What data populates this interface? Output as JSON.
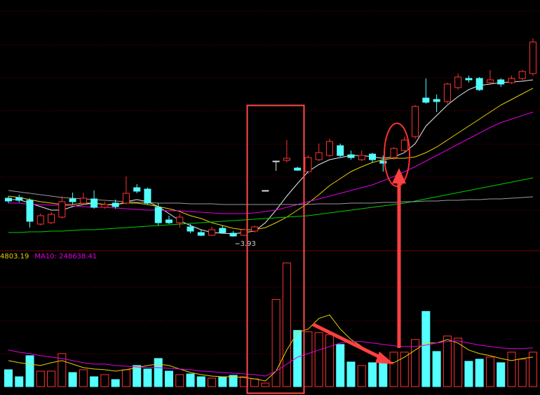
{
  "chart_data": [
    {
      "type": "candlestick",
      "ylim": [
        3.71,
        7.31
      ],
      "up_color": "#ff3232",
      "down_color": "#54ffff",
      "flat_color": "#dddddd",
      "open": [
        4.48,
        4.49,
        4.45,
        4.11,
        4.13,
        4.21,
        4.47,
        4.41,
        4.47,
        4.35,
        4.41,
        4.41,
        4.63,
        4.61,
        4.35,
        4.17,
        4.13,
        4.07,
        3.99,
        3.95,
        4.05,
        3.98,
        3.95,
        4.01,
        4.59,
        5.01,
        5.02,
        4.91,
        4.86,
        5.03,
        5.09,
        5.23,
        5.1,
        5.03,
        5.11,
        5.01,
        5.06,
        5.16,
        5.36,
        5.91,
        5.89,
        5.86,
        6.06,
        6.19,
        6.19,
        6.13,
        6.17,
        6.13,
        6.19,
        6.26
      ],
      "close": [
        4.44,
        4.45,
        4.15,
        4.23,
        4.25,
        4.43,
        4.43,
        4.48,
        4.35,
        4.39,
        4.36,
        4.55,
        4.58,
        4.41,
        4.13,
        4.13,
        4.21,
        4.01,
        3.95,
        4.03,
        3.99,
        3.94,
        4.03,
        4.07,
        4.59,
        5.01,
        5.05,
        4.88,
        5.06,
        5.13,
        5.29,
        5.09,
        5.06,
        5.09,
        5.03,
        4.98,
        5.19,
        5.31,
        5.79,
        5.85,
        5.86,
        6.11,
        6.21,
        6.17,
        6.03,
        6.17,
        6.11,
        6.19,
        6.29,
        6.71
      ],
      "high": [
        4.51,
        4.53,
        4.48,
        4.26,
        4.28,
        4.51,
        4.56,
        4.56,
        4.59,
        4.43,
        4.46,
        4.79,
        4.68,
        4.63,
        4.41,
        4.23,
        4.26,
        4.11,
        4.03,
        4.07,
        4.09,
        4.01,
        4.05,
        4.09,
        4.59,
        5.01,
        5.31,
        4.93,
        5.09,
        5.26,
        5.33,
        5.26,
        5.16,
        5.16,
        5.13,
        5.09,
        5.21,
        5.36,
        5.81,
        6.19,
        5.96,
        6.13,
        6.26,
        6.23,
        6.21,
        6.31,
        6.19,
        6.23,
        6.31,
        6.76
      ],
      "low": [
        4.41,
        4.42,
        4.06,
        4.09,
        4.11,
        4.19,
        4.39,
        4.38,
        4.33,
        4.33,
        4.33,
        4.39,
        4.55,
        4.39,
        4.09,
        4.11,
        4.06,
        3.98,
        3.94,
        3.94,
        3.97,
        3.93,
        3.94,
        3.99,
        4.59,
        4.87,
        4.99,
        4.87,
        4.83,
        5.01,
        5.07,
        5.07,
        5.03,
        5.01,
        4.99,
        4.86,
        5.03,
        5.13,
        5.33,
        5.83,
        5.71,
        5.83,
        6.03,
        6.13,
        6.01,
        6.11,
        6.07,
        6.11,
        6.16,
        6.23
      ],
      "low_label_index": 21,
      "series": [
        {
          "color": "#e8e8e8",
          "values": [
            4.46,
            4.46,
            4.41,
            4.36,
            4.31,
            4.31,
            4.36,
            4.39,
            4.41,
            4.39,
            4.38,
            4.43,
            4.46,
            4.43,
            4.36,
            4.26,
            4.16,
            4.09,
            4.03,
            3.99,
            3.98,
            3.97,
            3.99,
            4.01,
            4.13,
            4.31,
            4.51,
            4.69,
            4.86,
            4.96,
            5.03,
            5.06,
            5.09,
            5.09,
            5.07,
            5.05,
            5.07,
            5.13,
            5.26,
            5.51,
            5.66,
            5.81,
            5.93,
            6.03,
            6.09,
            6.11,
            6.13,
            6.14,
            6.15,
            6.17
          ]
        },
        {
          "color": "#e8d000",
          "values": [
            4.51,
            4.49,
            4.46,
            4.43,
            4.41,
            4.39,
            4.39,
            4.41,
            4.41,
            4.39,
            4.39,
            4.41,
            4.41,
            4.39,
            4.36,
            4.33,
            4.29,
            4.23,
            4.19,
            4.13,
            4.09,
            4.05,
            4.03,
            4.03,
            4.06,
            4.13,
            4.21,
            4.31,
            4.41,
            4.53,
            4.66,
            4.76,
            4.86,
            4.93,
            4.99,
            5.03,
            5.05,
            5.05,
            5.07,
            5.13,
            5.21,
            5.31,
            5.41,
            5.51,
            5.61,
            5.71,
            5.81,
            5.89,
            5.97,
            6.05
          ]
        },
        {
          "color": "#e000e0",
          "values": [
            4.41,
            4.41,
            4.39,
            4.39,
            4.38,
            4.38,
            4.37,
            4.36,
            4.35,
            4.35,
            4.34,
            4.33,
            4.32,
            4.31,
            4.31,
            4.3,
            4.3,
            4.29,
            4.28,
            4.27,
            4.26,
            4.26,
            4.26,
            4.27,
            4.29,
            4.31,
            4.35,
            4.39,
            4.43,
            4.47,
            4.51,
            4.55,
            4.59,
            4.63,
            4.67,
            4.73,
            4.79,
            4.86,
            4.93,
            5.01,
            5.09,
            5.17,
            5.25,
            5.33,
            5.41,
            5.49,
            5.56,
            5.61,
            5.66,
            5.71
          ]
        },
        {
          "color": "#00d000",
          "values": [
            3.99,
            3.99,
            4.0,
            4.0,
            4.01,
            4.01,
            4.02,
            4.03,
            4.03,
            4.04,
            4.05,
            4.06,
            4.07,
            4.08,
            4.09,
            4.1,
            4.11,
            4.12,
            4.13,
            4.14,
            4.15,
            4.16,
            4.17,
            4.18,
            4.19,
            4.2,
            4.21,
            4.22,
            4.23,
            4.25,
            4.27,
            4.29,
            4.31,
            4.33,
            4.35,
            4.37,
            4.39,
            4.41,
            4.44,
            4.47,
            4.5,
            4.53,
            4.56,
            4.59,
            4.62,
            4.65,
            4.68,
            4.71,
            4.74,
            4.77
          ]
        },
        {
          "color": "#9a9a9a",
          "values": [
            4.59,
            4.57,
            4.55,
            4.53,
            4.51,
            4.49,
            4.48,
            4.47,
            4.46,
            4.45,
            4.44,
            4.43,
            4.42,
            4.42,
            4.41,
            4.41,
            4.41,
            4.4,
            4.4,
            4.4,
            4.39,
            4.39,
            4.39,
            4.39,
            4.39,
            4.39,
            4.39,
            4.39,
            4.39,
            4.4,
            4.4,
            4.4,
            4.41,
            4.41,
            4.41,
            4.42,
            4.42,
            4.43,
            4.43,
            4.44,
            4.44,
            4.45,
            4.45,
            4.46,
            4.46,
            4.47,
            4.47,
            4.48,
            4.49,
            4.5
          ]
        }
      ]
    },
    {
      "type": "bar",
      "ylim": [
        0,
        830000
      ],
      "legend": [
        {
          "text": "4803.19",
          "color": "#e8d000"
        },
        {
          "text": "MA10: 248638.41",
          "color": "#e000e0"
        }
      ],
      "values": [
        108000,
        63000,
        198000,
        99000,
        99000,
        211500,
        90000,
        108000,
        63000,
        76500,
        45000,
        108000,
        135000,
        112500,
        180000,
        99000,
        76500,
        81000,
        63000,
        54000,
        63000,
        72000,
        63000,
        49500,
        22500,
        558000,
        792000,
        360000,
        351000,
        346500,
        333000,
        270000,
        157500,
        135000,
        153000,
        157500,
        220500,
        220500,
        301500,
        481500,
        225000,
        324000,
        310500,
        162000,
        175500,
        189000,
        153000,
        220500,
        175500,
        220500
      ],
      "series": [
        {
          "color": "#e8d000",
          "values": [
            166500,
            153000,
            144000,
            135000,
            153000,
            166500,
            144000,
            121500,
            112500,
            108000,
            99000,
            108000,
            121500,
            135000,
            144000,
            135000,
            112500,
            90000,
            76500,
            67500,
            63000,
            63000,
            58500,
            49500,
            36000,
            99000,
            234000,
            346500,
            369000,
            436500,
            459000,
            369000,
            301500,
            256500,
            211500,
            166500,
            153000,
            189000,
            234000,
            279000,
            279000,
            301500,
            279000,
            234000,
            211500,
            198000,
            180000,
            166500,
            180000,
            189000
          ]
        },
        {
          "color": "#e000e0",
          "values": [
            234000,
            220500,
            211500,
            198000,
            189000,
            180000,
            166500,
            153000,
            144000,
            144000,
            135000,
            130500,
            126000,
            121500,
            121500,
            117000,
            112500,
            108000,
            99000,
            94500,
            90000,
            85500,
            81000,
            76500,
            67500,
            99000,
            144000,
            189000,
            211500,
            234000,
            256500,
            279000,
            288000,
            288000,
            279000,
            270000,
            261000,
            256500,
            256500,
            265500,
            279000,
            288000,
            292500,
            279000,
            265500,
            256500,
            247500,
            243000,
            243000,
            248638.41
          ]
        }
      ]
    }
  ]
}
